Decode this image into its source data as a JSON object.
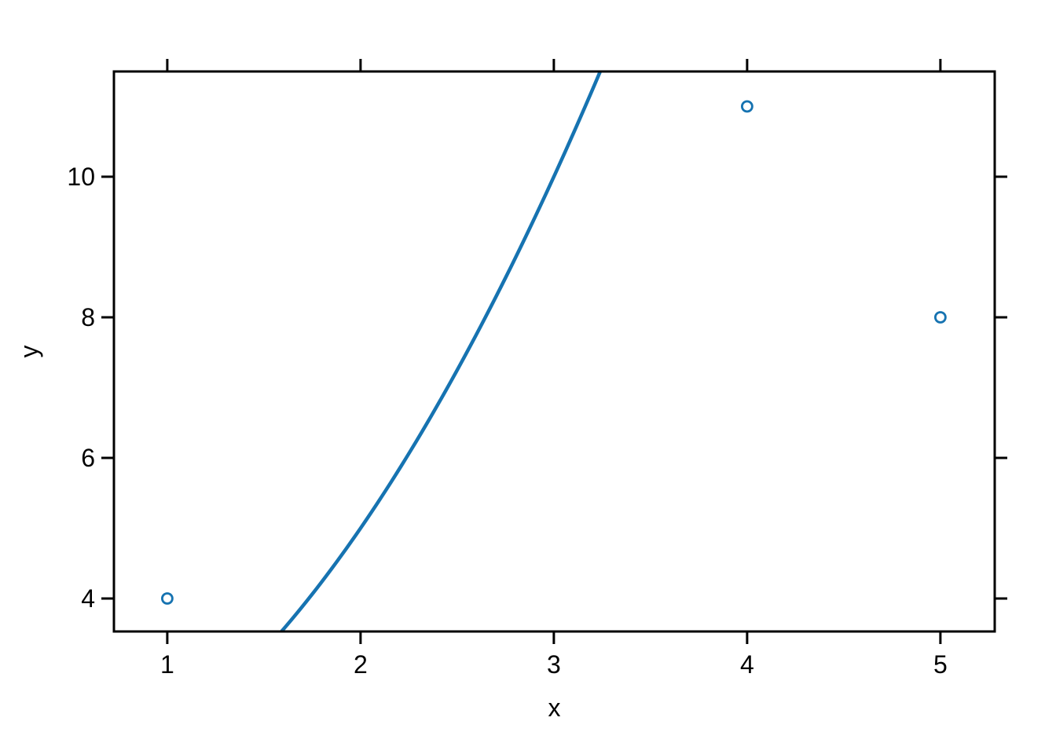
{
  "figure": {
    "background_color": "#ffffff",
    "axis_color": "#000000",
    "accent_blue": "#1673b1"
  },
  "chart_data": {
    "type": "scatter",
    "title": "",
    "xlabel": "x",
    "ylabel": "y",
    "points": [
      {
        "x": 1,
        "y": 4
      },
      {
        "x": 4,
        "y": 11
      },
      {
        "x": 5,
        "y": 8
      }
    ],
    "point_style": "open-circle",
    "point_color": "#1673b1",
    "curve": {
      "type": "quadratic",
      "description": "y = x^2 + 1, clipped to plot region",
      "coefficients": {
        "a": 1,
        "b": 0,
        "c": 1
      },
      "x_start": 1.591,
      "x_end": 3.24,
      "color": "#1673b1",
      "width": 4.5
    },
    "x_ticks": [
      1,
      2,
      3,
      4,
      5
    ],
    "y_ticks": [
      4,
      6,
      8,
      10
    ],
    "x_tick_labels": [
      "1",
      "2",
      "3",
      "4",
      "5"
    ],
    "y_tick_labels": [
      "4",
      "6",
      "8",
      "10"
    ],
    "xlim": [
      0.724,
      5.281
    ],
    "ylim": [
      3.531,
      11.497
    ],
    "grid": false,
    "legend_position": "none",
    "ticks_on_all_sides": true
  }
}
